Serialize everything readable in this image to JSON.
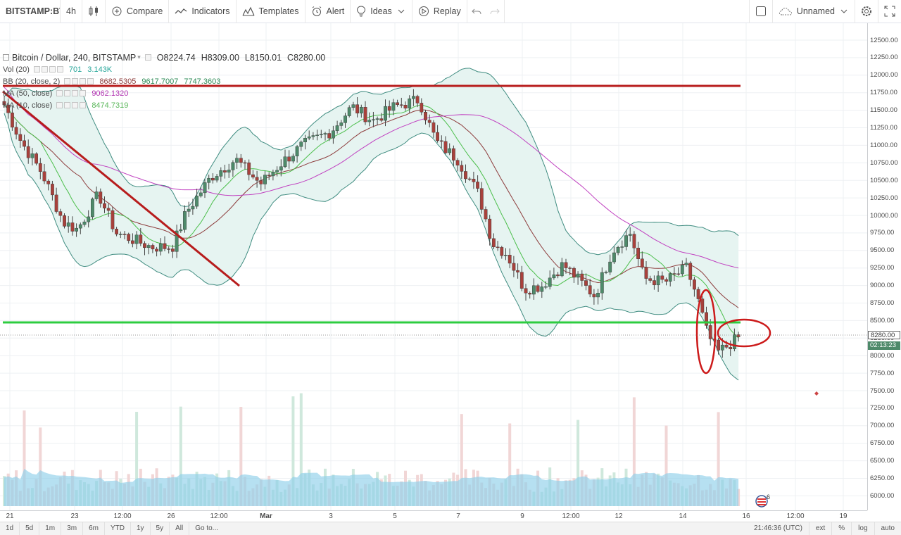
{
  "toolbar": {
    "symbol": "BITSTAMP:BTCUSD",
    "interval": "4h",
    "compare": "Compare",
    "indicators": "Indicators",
    "templates": "Templates",
    "alert": "Alert",
    "ideas": "Ideas",
    "replay": "Replay",
    "layout_name": "Unnamed"
  },
  "legend": {
    "title": "Bitcoin / Dollar, 240, BITSTAMP",
    "open": "O8224.74",
    "high": "H8309.00",
    "low": "L8150.01",
    "close": "C8280.00",
    "indicators": [
      {
        "name": "Vol (20)",
        "values": [
          "701",
          "3.143K"
        ],
        "colors": [
          "#26a69a",
          "#26a69a"
        ]
      },
      {
        "name": "BB (20, close, 2)",
        "values": [
          "8682.5305",
          "9617.7007",
          "7747.3603"
        ],
        "colors": [
          "#8d3c3c",
          "#2e8b57",
          "#2e8b57"
        ]
      },
      {
        "name": "MA (50, close)",
        "values": [
          "9062.1320"
        ],
        "colors": [
          "#b030b0"
        ]
      },
      {
        "name": "MA (10, close)",
        "values": [
          "8474.7319"
        ],
        "colors": [
          "#5cb85c"
        ]
      }
    ]
  },
  "price_axis": {
    "ticks": [
      "12500.00",
      "12250.00",
      "12000.00",
      "11750.00",
      "11500.00",
      "11250.00",
      "11000.00",
      "10750.00",
      "10500.00",
      "10250.00",
      "10000.00",
      "9750.00",
      "9500.00",
      "9250.00",
      "9000.00",
      "8750.00",
      "8500.00",
      "8250.00",
      "8000.00",
      "7750.00",
      "7500.00",
      "7250.00",
      "7000.00",
      "6750.00",
      "6500.00",
      "6250.00",
      "6000.00"
    ],
    "last_price": "8280.00",
    "countdown": "02:13:23"
  },
  "time_axis": {
    "ticks": [
      "21",
      "23",
      "12:00",
      "26",
      "12:00",
      "Mar",
      "3",
      "5",
      "7",
      "9",
      "12:00",
      "12",
      "14",
      "16",
      "12:00",
      "19"
    ]
  },
  "bottom_bar": {
    "ranges": [
      "1d",
      "5d",
      "1m",
      "3m",
      "6m",
      "YTD",
      "1y",
      "5y",
      "All"
    ],
    "goto": "Go to...",
    "clock": "21:46:36 (UTC)",
    "ext": "ext",
    "percent": "%",
    "log": "log",
    "auto": "auto"
  },
  "events_badge": "6",
  "colors": {
    "up": "#4e8a6a",
    "down": "#a8413c",
    "resistance": "#b71c1c",
    "support": "#2ecc40",
    "bb_fill": "#e6f4f1",
    "bb_band": "#3f8c80",
    "bb_basis": "#8d3c3c",
    "ma50": "#c040c0",
    "ma10": "#4cbf4c",
    "volume_ma": "#8fd0ea",
    "annotation": "#cc1a1a"
  }
}
